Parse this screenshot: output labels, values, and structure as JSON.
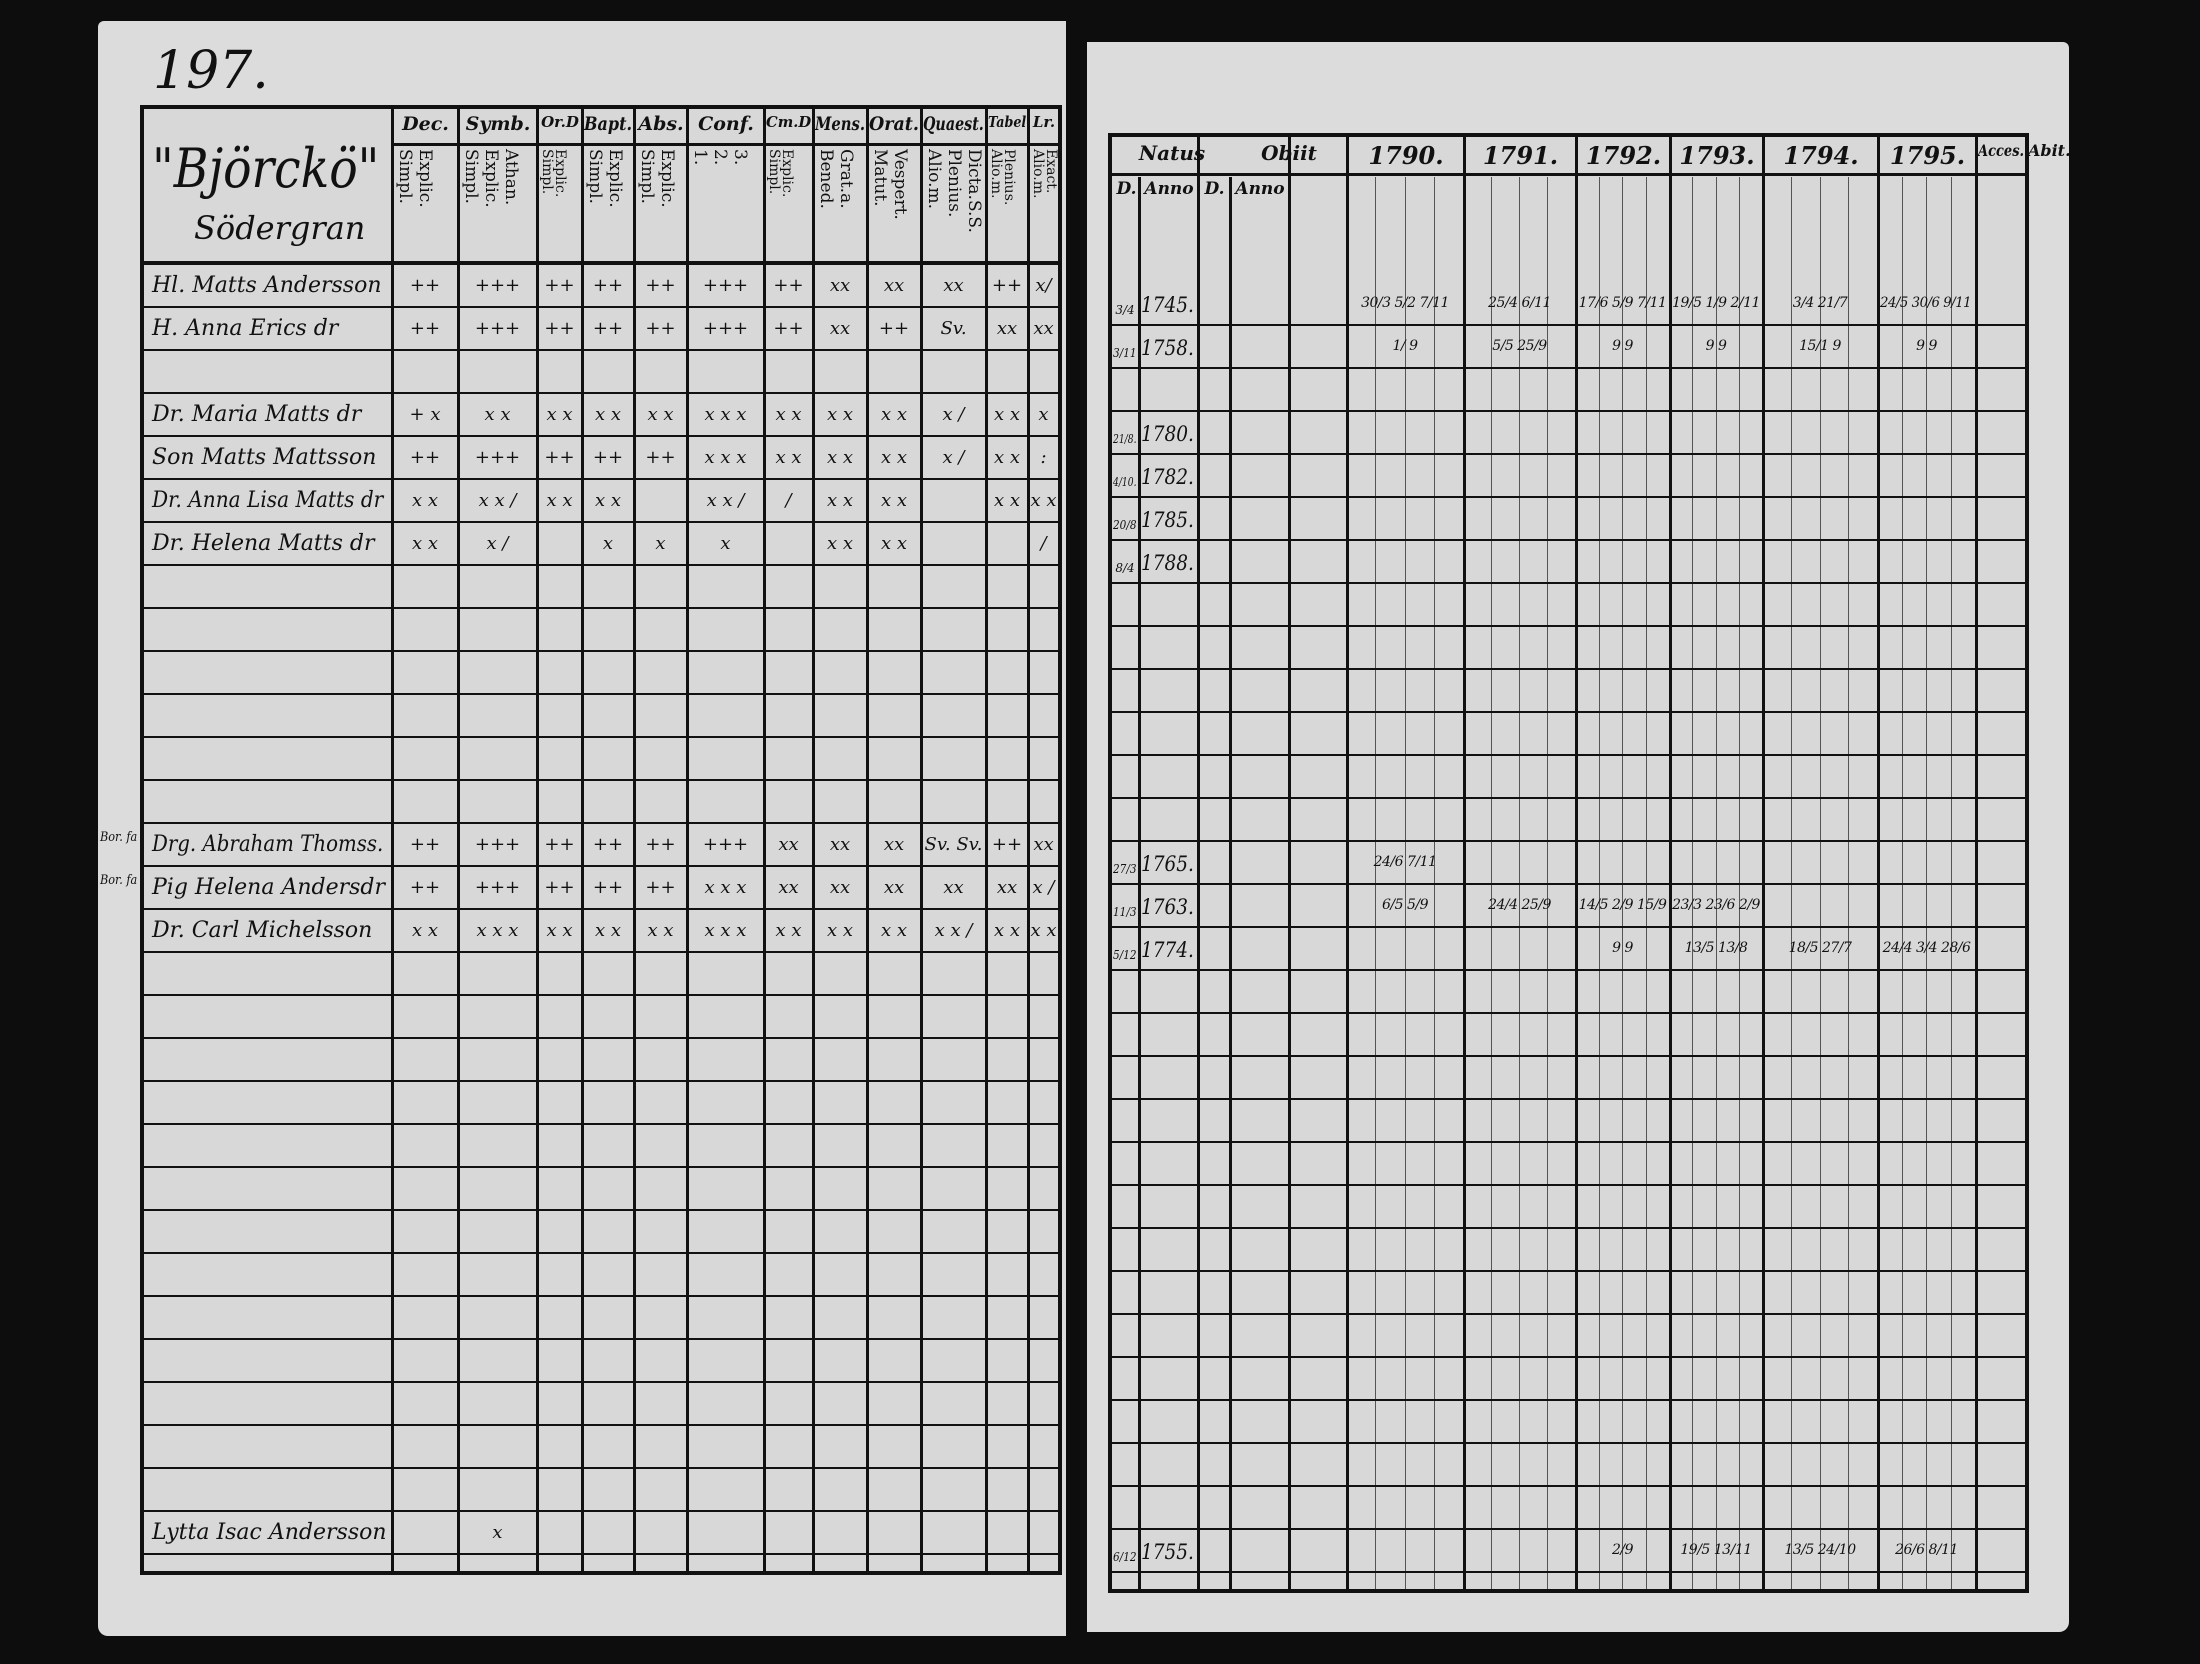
{
  "page_number": "197.",
  "left": {
    "title": "\"Björckö\"",
    "subtitle": "Södergran",
    "columns": [
      {
        "label": "Dec.",
        "sub": "Explic.\nSimpl."
      },
      {
        "label": "Symb.",
        "sub": "Athan.\nExplic.\nSimpl."
      },
      {
        "label": "Or.D",
        "sub": "Explic.\nSimpl."
      },
      {
        "label": "Bapt.",
        "sub": "Explic.\nSimpl."
      },
      {
        "label": "Abs.",
        "sub": "Explic.\nSimpl."
      },
      {
        "label": "Conf.",
        "sub": "3.\n2.\n1."
      },
      {
        "label": "Cm.D",
        "sub": "Explic.\nSimpl."
      },
      {
        "label": "Mens.",
        "sub": "Grat.a.\nBened."
      },
      {
        "label": "Orat.",
        "sub": "Vespert.\nMatut."
      },
      {
        "label": "Quaest.",
        "sub": "Dicta.S.S.\nPlenius.\nAlio.m."
      },
      {
        "label": "Tabel",
        "sub": "Plenius.\nAlio.m."
      },
      {
        "label": "Lr.",
        "sub": "Exact.\nAlio.m."
      }
    ]
  },
  "right": {
    "headers": [
      "Natus",
      "Obiit",
      "1790.",
      "1791.",
      "1792.",
      "1793.",
      "1794.",
      "1795.",
      "Acces.",
      "Abit."
    ],
    "subheaders": [
      "D.",
      "Anno",
      "D.",
      "Anno"
    ]
  },
  "rows": [
    {
      "row": 0,
      "name": "Hl. Matts Andersson",
      "marks": [
        "++",
        "+++",
        "++",
        "++",
        "++",
        "+++",
        "++",
        "xx",
        "xx",
        "xx",
        "++",
        "x/"
      ],
      "natus_d": "3/4",
      "natus_anno": "1745.",
      "years": [
        "30/3 5/2 7/11",
        "25/4 6/11",
        "17/6 5/9 7/11",
        "19/5 1/9 2/11",
        "3/4 21/7",
        "24/5 30/6 9/11"
      ]
    },
    {
      "row": 1,
      "name": "H. Anna Erics dr",
      "marks": [
        "++",
        "+++",
        "++",
        "++",
        "++",
        "+++",
        "++",
        "xx",
        "++",
        "Sv.",
        "xx",
        "xx"
      ],
      "natus_d": "3/11",
      "natus_anno": "1758.",
      "years": [
        "1/ 9",
        "5/5 25/9",
        "9 9",
        "9 9",
        "15/1 9",
        "9 9"
      ]
    },
    {
      "row": 3,
      "name": "Dr. Maria Matts dr",
      "marks": [
        "+ x",
        "x x",
        "x x",
        "x x",
        "x x",
        "x x x",
        "x x",
        "x x",
        "x x",
        "x /",
        "x x",
        "x"
      ],
      "natus_d": "21/8.",
      "natus_anno": "1780.",
      "years": [
        "",
        "",
        "",
        "",
        "",
        ""
      ]
    },
    {
      "row": 4,
      "name": "Son Matts Mattsson",
      "marks": [
        "++",
        "+++",
        "++",
        "++",
        "++",
        "x x x",
        "x x",
        "x x",
        "x x",
        "x /",
        "x x",
        ":"
      ],
      "natus_d": "4/10.",
      "natus_anno": "1782.",
      "years": [
        "",
        "",
        "",
        "",
        "",
        ""
      ]
    },
    {
      "row": 5,
      "name": "Dr. Anna Lisa Matts dr",
      "marks": [
        "x x",
        "x x /",
        "x x",
        "x x",
        "",
        "x x /",
        "/",
        "x x",
        "x x",
        "",
        "x x",
        "x x"
      ],
      "natus_d": "20/8",
      "natus_anno": "1785.",
      "years": [
        "",
        "",
        "",
        "",
        "",
        ""
      ]
    },
    {
      "row": 6,
      "name": "Dr. Helena Matts dr",
      "marks": [
        "x x",
        "x /",
        "",
        "x",
        "x",
        "x",
        "",
        "x x",
        "x x",
        "",
        "",
        "/"
      ],
      "natus_d": "8/4",
      "natus_anno": "1788.",
      "years": [
        "",
        "",
        "",
        "",
        "",
        ""
      ]
    },
    {
      "row": 13,
      "margin": "Bor. fa",
      "name": "Drg. Abraham Thomss.",
      "marks": [
        "++",
        "+++",
        "++",
        "++",
        "++",
        "+++",
        "xx",
        "xx",
        "xx",
        "Sv. Sv.",
        "++",
        "xx"
      ],
      "natus_d": "27/3",
      "natus_anno": "1765.",
      "years": [
        "24/6 7/11",
        "",
        "",
        "",
        "",
        ""
      ]
    },
    {
      "row": 14,
      "margin": "Bor. fa",
      "name": "Pig Helena Andersdr",
      "marks": [
        "++",
        "+++",
        "++",
        "++",
        "++",
        "x x x",
        "xx",
        "xx",
        "xx",
        "xx",
        "xx",
        "x /"
      ],
      "natus_d": "11/3",
      "natus_anno": "1763.",
      "years": [
        "6/5 5/9",
        "24/4 25/9",
        "14/5 2/9 15/9",
        "23/3 23/6 2/9",
        "",
        ""
      ]
    },
    {
      "row": 15,
      "name": "Dr. Carl Michelsson",
      "marks": [
        "x x",
        "x x x",
        "x x",
        "x x",
        "x x",
        "x x x",
        "x x",
        "x x",
        "x x",
        "x x /",
        "x x",
        "x x"
      ],
      "natus_d": "5/12",
      "natus_anno": "1774.",
      "years": [
        "",
        "",
        "9 9",
        "13/5 13/8",
        "18/5 27/7",
        "24/4 3/4 28/6"
      ]
    },
    {
      "row": 29,
      "name": "Lytta Isac Andersson",
      "marks": [
        "",
        "x",
        "",
        "",
        "",
        "",
        "",
        "",
        "",
        "",
        "",
        ""
      ],
      "natus_d": "6/12",
      "natus_anno": "1755.",
      "years": [
        "",
        "",
        "2/9",
        "19/5 13/11",
        "13/5 24/10",
        "26/6 8/11"
      ]
    }
  ]
}
